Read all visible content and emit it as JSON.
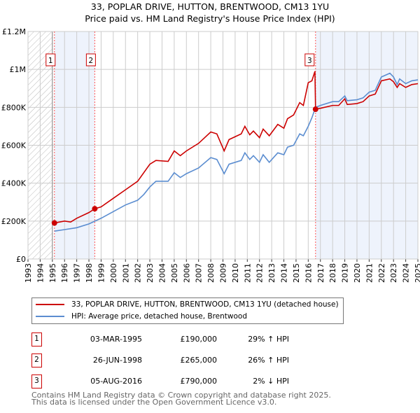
{
  "chart_data": {
    "type": "line",
    "title": "33, POPLAR DRIVE, HUTTON, BRENTWOOD, CM13 1YU",
    "subtitle": "Price paid vs. HM Land Registry's House Price Index (HPI)",
    "xlim": [
      1993,
      2025
    ],
    "ylim": [
      0,
      1200000
    ],
    "y_ticks": [
      {
        "v": 0,
        "label": "£0"
      },
      {
        "v": 200000,
        "label": "£200K"
      },
      {
        "v": 400000,
        "label": "£400K"
      },
      {
        "v": 600000,
        "label": "£600K"
      },
      {
        "v": 800000,
        "label": "£800K"
      },
      {
        "v": 1000000,
        "label": "£1M"
      },
      {
        "v": 1200000,
        "label": "£1.2M"
      }
    ],
    "x_ticks": [
      "1993",
      "1994",
      "1995",
      "1996",
      "1997",
      "1998",
      "1999",
      "2000",
      "2001",
      "2002",
      "2003",
      "2004",
      "2005",
      "2006",
      "2007",
      "2008",
      "2009",
      "2010",
      "2011",
      "2012",
      "2013",
      "2014",
      "2015",
      "2016",
      "2017",
      "2018",
      "2019",
      "2020",
      "2021",
      "2022",
      "2023",
      "2024",
      "2025"
    ],
    "grid": true,
    "series": [
      {
        "name": "33, POPLAR DRIVE, HUTTON, BRENTWOOD, CM13 1YU (detached house)",
        "color": "#cc0000",
        "points": [
          [
            1995.17,
            190
          ],
          [
            1996,
            200
          ],
          [
            1996.5,
            195
          ],
          [
            1997,
            215
          ],
          [
            1998,
            245
          ],
          [
            1998.48,
            265
          ],
          [
            1999,
            275
          ],
          [
            2000,
            320
          ],
          [
            2001,
            365
          ],
          [
            2002,
            410
          ],
          [
            2003,
            500
          ],
          [
            2003.5,
            520
          ],
          [
            2004.5,
            515
          ],
          [
            2005,
            570
          ],
          [
            2005.5,
            545
          ],
          [
            2006,
            570
          ],
          [
            2007,
            610
          ],
          [
            2008,
            670
          ],
          [
            2008.5,
            660
          ],
          [
            2009.1,
            570
          ],
          [
            2009.5,
            630
          ],
          [
            2010.5,
            660
          ],
          [
            2010.8,
            700
          ],
          [
            2011.2,
            655
          ],
          [
            2011.5,
            675
          ],
          [
            2012,
            640
          ],
          [
            2012.3,
            685
          ],
          [
            2012.8,
            650
          ],
          [
            2013.5,
            710
          ],
          [
            2014,
            690
          ],
          [
            2014.3,
            740
          ],
          [
            2014.8,
            760
          ],
          [
            2015.3,
            825
          ],
          [
            2015.6,
            810
          ],
          [
            2016,
            930
          ],
          [
            2016.3,
            940
          ],
          [
            2016.55,
            990
          ],
          [
            2016.6,
            790
          ],
          [
            2017,
            795
          ],
          [
            2018,
            810
          ],
          [
            2018.5,
            810
          ],
          [
            2019,
            845
          ],
          [
            2019.2,
            815
          ],
          [
            2020,
            820
          ],
          [
            2020.5,
            830
          ],
          [
            2021,
            860
          ],
          [
            2021.5,
            870
          ],
          [
            2022,
            940
          ],
          [
            2022.7,
            950
          ],
          [
            2023,
            935
          ],
          [
            2023.3,
            905
          ],
          [
            2023.5,
            925
          ],
          [
            2024,
            905
          ],
          [
            2024.5,
            920
          ],
          [
            2025,
            925
          ]
        ]
      },
      {
        "name": "HPI: Average price, detached house, Brentwood",
        "color": "#5b8dd0",
        "points": [
          [
            1995.17,
            147
          ],
          [
            1996,
            155
          ],
          [
            1997,
            165
          ],
          [
            1998,
            185
          ],
          [
            1999,
            215
          ],
          [
            2000,
            250
          ],
          [
            2001,
            285
          ],
          [
            2002,
            310
          ],
          [
            2002.5,
            340
          ],
          [
            2003,
            380
          ],
          [
            2003.5,
            410
          ],
          [
            2004.5,
            410
          ],
          [
            2005,
            455
          ],
          [
            2005.5,
            430
          ],
          [
            2006,
            450
          ],
          [
            2007,
            480
          ],
          [
            2008,
            535
          ],
          [
            2008.5,
            525
          ],
          [
            2009.1,
            450
          ],
          [
            2009.5,
            500
          ],
          [
            2010.5,
            520
          ],
          [
            2010.8,
            560
          ],
          [
            2011.2,
            525
          ],
          [
            2011.5,
            545
          ],
          [
            2012,
            510
          ],
          [
            2012.3,
            550
          ],
          [
            2012.8,
            510
          ],
          [
            2013.5,
            560
          ],
          [
            2014,
            550
          ],
          [
            2014.3,
            590
          ],
          [
            2014.8,
            600
          ],
          [
            2015.3,
            660
          ],
          [
            2015.6,
            650
          ],
          [
            2016,
            700
          ],
          [
            2016.3,
            745
          ],
          [
            2016.6,
            800
          ],
          [
            2017,
            810
          ],
          [
            2018,
            830
          ],
          [
            2018.5,
            830
          ],
          [
            2019,
            860
          ],
          [
            2019.2,
            835
          ],
          [
            2020,
            840
          ],
          [
            2020.5,
            850
          ],
          [
            2021,
            880
          ],
          [
            2021.5,
            890
          ],
          [
            2022,
            960
          ],
          [
            2022.7,
            980
          ],
          [
            2023,
            960
          ],
          [
            2023.3,
            920
          ],
          [
            2023.5,
            950
          ],
          [
            2024,
            925
          ],
          [
            2024.5,
            940
          ],
          [
            2025,
            945
          ]
        ]
      }
    ],
    "sales": [
      {
        "label": "1",
        "x": 1995.17,
        "value": 190000
      },
      {
        "label": "2",
        "x": 1998.48,
        "value": 265000
      },
      {
        "label": "3",
        "x": 2016.6,
        "value": 790000
      }
    ],
    "legend_placement": "below"
  },
  "legend": {
    "red": "33, POPLAR DRIVE, HUTTON, BRENTWOOD, CM13 1YU (detached house)",
    "blue": "HPI: Average price, detached house, Brentwood"
  },
  "transactions": [
    {
      "num": "1",
      "date": "03-MAR-1995",
      "price": "£190,000",
      "hpi": "29% ↑ HPI"
    },
    {
      "num": "2",
      "date": "26-JUN-1998",
      "price": "£265,000",
      "hpi": "26% ↑ HPI"
    },
    {
      "num": "3",
      "date": "05-AUG-2016",
      "price": "£790,000",
      "hpi": "2% ↓ HPI"
    }
  ],
  "footer": {
    "line1": "Contains HM Land Registry data © Crown copyright and database right 2025.",
    "line2": "This data is licensed under the Open Government Licence v3.0."
  }
}
